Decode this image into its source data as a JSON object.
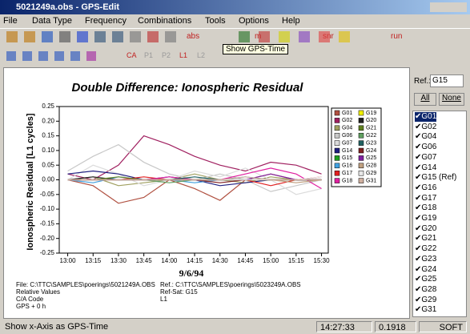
{
  "window": {
    "title": "5021249a.obs - GPS-Edit"
  },
  "menu": [
    "File",
    "Data Type",
    "Frequency",
    "Combinations",
    "Tools",
    "Options",
    "Help"
  ],
  "toolbar": {
    "buttons": [
      "abs",
      "m",
      "snr",
      "run"
    ],
    "tooltip": "Show GPS-Time",
    "buttons2": [
      "CA",
      "P1",
      "P2",
      "L1",
      "L2"
    ]
  },
  "side_panel": {
    "ref_label": "Ref.:",
    "ref_value": "G15",
    "all": "All",
    "none": "None",
    "items": [
      "G01",
      "G02",
      "G04",
      "G06",
      "G07",
      "G14",
      "G15 (Ref)",
      "G16",
      "G17",
      "G18",
      "G19",
      "G20",
      "G21",
      "G22",
      "G23",
      "G24",
      "G25",
      "G28",
      "G29",
      "G31"
    ]
  },
  "chart_data": {
    "type": "line",
    "title": "Double Difference: Ionospheric Residual",
    "y_label": "Ionospheric Residual [L1 cycles]",
    "x_label": "9/6/94",
    "x": [
      780,
      795,
      810,
      825,
      840,
      855,
      870,
      885,
      900,
      915,
      930
    ],
    "xlim": [
      775,
      934
    ],
    "xticks": [
      {
        "value": 780,
        "label": "13:00"
      },
      {
        "value": 795,
        "label": "13:15"
      },
      {
        "value": 810,
        "label": "13:30"
      },
      {
        "value": 825,
        "label": "13:45"
      },
      {
        "value": 840,
        "label": "14:00"
      },
      {
        "value": 855,
        "label": "14:15"
      },
      {
        "value": 870,
        "label": "14:30"
      },
      {
        "value": 885,
        "label": "14:45"
      },
      {
        "value": 900,
        "label": "15:00"
      },
      {
        "value": 915,
        "label": "15:15"
      },
      {
        "value": 930,
        "label": "15:30"
      }
    ],
    "ylim": [
      -0.25,
      0.25
    ],
    "yticks": [
      0.25,
      {
        "value": 0.2,
        "label": "0.20"
      },
      0.15,
      {
        "value": 0.1,
        "label": "0.10"
      },
      0.05,
      {
        "value": 0,
        "label": "0.00"
      },
      -0.05,
      {
        "value": -0.1,
        "label": "-0.10"
      },
      -0.15,
      {
        "value": -0.2,
        "label": "-0.20"
      },
      -0.25
    ],
    "series": [
      {
        "name": "G01",
        "color": "#b05040",
        "values": [
          0,
          -0.02,
          -0.08,
          -0.06,
          0,
          -0.03,
          -0.07,
          0,
          0.02,
          0,
          0
        ]
      },
      {
        "name": "G02",
        "color": "#a02060",
        "values": [
          0.02,
          0,
          0.05,
          0.15,
          0.12,
          0.08,
          0.05,
          0.03,
          0.06,
          0.05,
          0.02
        ]
      },
      {
        "name": "G04",
        "color": "#a0a060",
        "values": [
          0,
          0.01,
          -0.02,
          -0.01,
          0,
          0.02,
          0,
          -0.01,
          0.01,
          0,
          0
        ]
      },
      {
        "name": "G06",
        "color": "#c8c8c8",
        "values": [
          0.03,
          0.08,
          0.12,
          0.06,
          0.02,
          0,
          0.02,
          0,
          -0.04,
          -0.02,
          0
        ]
      },
      {
        "name": "G07",
        "color": "#dcdcdc",
        "values": [
          0,
          0.05,
          0.02,
          -0.02,
          0,
          0.03,
          0.01,
          0.04,
          0,
          -0.05,
          -0.03
        ]
      },
      {
        "name": "G14",
        "color": "#202080",
        "values": [
          0.02,
          0.03,
          0.02,
          0,
          0.01,
          0,
          -0.02,
          -0.01,
          0,
          0,
          0
        ]
      },
      {
        "name": "G15",
        "color": "#20a020",
        "values": [
          0,
          0,
          0,
          0,
          0,
          0,
          0,
          0,
          0,
          0,
          0
        ]
      },
      {
        "name": "G16",
        "color": "#40a0e0",
        "values": [
          0,
          -0.01,
          0.01,
          0,
          0,
          -0.01,
          0,
          0.01,
          0,
          0,
          0
        ]
      },
      {
        "name": "G17",
        "color": "#e02020",
        "values": [
          0,
          0,
          0,
          0.01,
          0,
          0,
          0,
          0,
          -0.02,
          0,
          0.01
        ]
      },
      {
        "name": "G18",
        "color": "#e020a0",
        "values": [
          0,
          0,
          0,
          0,
          0.01,
          0,
          0,
          0.02,
          0.04,
          0.02,
          -0.03
        ]
      },
      {
        "name": "G19",
        "color": "#f0f000",
        "values": [
          0,
          0,
          0,
          0,
          0,
          0,
          0,
          0,
          0,
          0,
          0
        ]
      },
      {
        "name": "G20",
        "color": "#202020",
        "values": [
          0,
          0.01,
          0,
          0,
          0,
          0,
          0,
          0,
          0,
          0,
          0
        ]
      },
      {
        "name": "G21",
        "color": "#608020",
        "values": [
          0,
          0,
          0.01,
          0,
          0,
          0,
          0,
          0,
          0,
          0,
          0
        ]
      },
      {
        "name": "G22",
        "color": "#60a060",
        "values": [
          0,
          0,
          0,
          0,
          -0.01,
          0,
          0,
          0,
          0,
          0,
          0
        ]
      },
      {
        "name": "G23",
        "color": "#206060",
        "values": [
          0,
          0,
          0,
          0,
          0,
          0.01,
          0,
          0,
          0,
          0,
          0
        ]
      },
      {
        "name": "G24",
        "color": "#802020",
        "values": [
          0,
          0,
          0,
          0,
          0,
          0,
          -0.01,
          0,
          0,
          0,
          0
        ]
      },
      {
        "name": "G25",
        "color": "#8020a0",
        "values": [
          0,
          0,
          0,
          0,
          0,
          0,
          0,
          0,
          0.02,
          0,
          0
        ]
      },
      {
        "name": "G28",
        "color": "#c0a080",
        "values": [
          0,
          0,
          0,
          0,
          0,
          0,
          0,
          0,
          0,
          -0.01,
          0
        ]
      },
      {
        "name": "G29",
        "color": "#e8e8e8",
        "values": [
          0,
          0,
          0,
          0,
          0,
          0,
          0,
          0,
          0,
          0,
          0.01
        ]
      },
      {
        "name": "G31",
        "color": "#d0b0a0",
        "values": [
          0,
          0,
          0,
          0,
          0,
          0,
          0,
          0.01,
          0,
          0,
          0
        ]
      }
    ]
  },
  "footer": {
    "left": [
      "File: C:\\TTC\\SAMPLES\\poerings\\5021249A.OBS",
      "Relative Values",
      "C/A Code",
      "GPS + 0 h"
    ],
    "right": [
      "Ref.: C:\\TTC\\SAMPLES\\poerings\\5023249A.OBS",
      "Ref-Sat: G15",
      "L1"
    ]
  },
  "status": {
    "message": "Show x-Axis as GPS-Time",
    "time": "14:27:33",
    "value": "0.1918",
    "mode": "SOFT"
  }
}
